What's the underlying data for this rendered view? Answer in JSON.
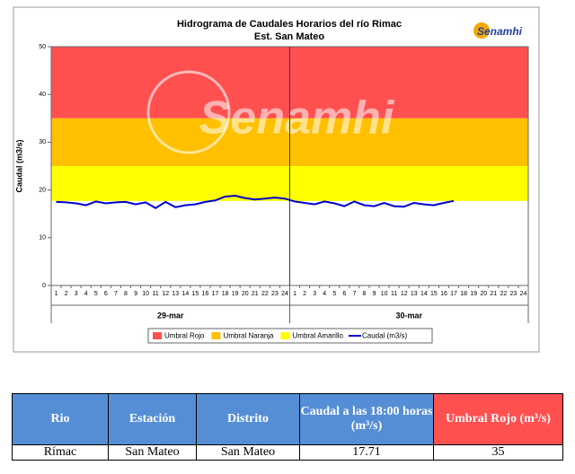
{
  "chart_data": {
    "type": "line",
    "title": "Hidrograma de Caudales Horarios del río Rimac",
    "subtitle": "Est. San Mateo",
    "logo": "Senamhi",
    "watermark": "Senamhi",
    "y_label": "Caudal  (m3/s)",
    "ylim": [
      0,
      50
    ],
    "yticks": [
      0,
      10,
      20,
      30,
      40,
      50
    ],
    "categories": [
      "1",
      "2",
      "3",
      "4",
      "5",
      "6",
      "7",
      "8",
      "9",
      "10",
      "11",
      "12",
      "13",
      "14",
      "15",
      "16",
      "17",
      "18",
      "19",
      "20",
      "21",
      "22",
      "23",
      "24",
      "1",
      "2",
      "3",
      "4",
      "5",
      "6",
      "7",
      "8",
      "9",
      "10",
      "11",
      "12",
      "13",
      "14",
      "15",
      "16",
      "17",
      "18",
      "19",
      "20",
      "21",
      "22",
      "23",
      "24"
    ],
    "groups": [
      "29-mar",
      "30-mar"
    ],
    "bands": [
      {
        "name": "Umbral Rojo",
        "color": "#ff5050",
        "from": 35,
        "to": 50
      },
      {
        "name": "Umbral Naranja",
        "color": "#ffc000",
        "from": 25,
        "to": 35
      },
      {
        "name": "Umbral Amarillo",
        "color": "#ffff00",
        "from": 17.7,
        "to": 25
      }
    ],
    "series": [
      {
        "name": "Caudal (m3/s)",
        "color": "#0000cc",
        "values": [
          17.5,
          17.4,
          17.2,
          16.8,
          17.6,
          17.2,
          17.4,
          17.5,
          17.0,
          17.4,
          16.2,
          17.5,
          16.4,
          16.8,
          17.0,
          17.5,
          17.8,
          18.6,
          18.8,
          18.3,
          18.0,
          18.2,
          18.4,
          18.2,
          17.6,
          17.3,
          17.0,
          17.6,
          17.2,
          16.6,
          17.6,
          16.8,
          16.6,
          17.3,
          16.6,
          16.5,
          17.3,
          17.0,
          16.8,
          17.3,
          17.7,
          null,
          null,
          null,
          null,
          null,
          null,
          null
        ]
      }
    ]
  },
  "table": {
    "header": [
      "Rio",
      "Estación",
      "Distrito",
      "Caudal a las 18:00 horas (m³/s)",
      "Umbral Rojo (m³/s)"
    ],
    "rows": [
      [
        "Rímac",
        "San Mateo",
        "San Mateo",
        17.71,
        35
      ]
    ]
  }
}
